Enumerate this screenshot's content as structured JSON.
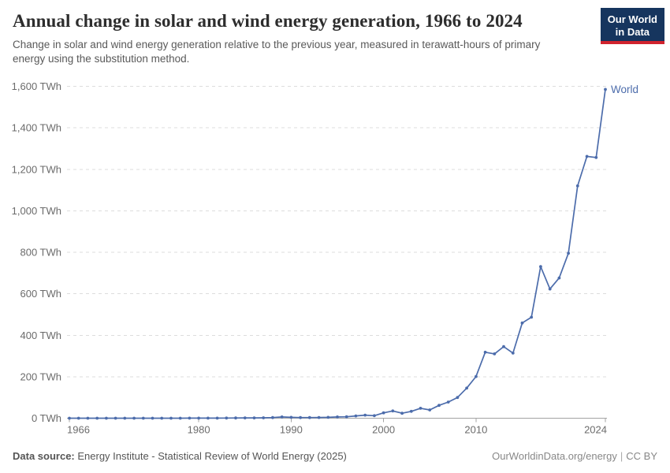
{
  "header": {
    "title": "Annual change in solar and wind energy generation, 1966 to 2024",
    "subtitle": "Change in solar and wind energy generation relative to the previous year, measured in terawatt-hours of primary energy using the substitution method.",
    "logo": {
      "line1": "Our World",
      "line2": "in Data",
      "bg_color": "#16355e",
      "stripe_color": "#d0232e"
    }
  },
  "chart_data": {
    "type": "line",
    "title": "Annual change in solar and wind energy generation, 1966 to 2024",
    "entity_label": "World",
    "unit": "TWh",
    "line_color": "#4c6cab",
    "grid": "horizontal-dashed",
    "legend_position": "end-of-line",
    "xlim": [
      1966,
      2024
    ],
    "ylim": [
      0,
      1600
    ],
    "x_ticks": [
      1966,
      1980,
      1990,
      2000,
      2010,
      2024
    ],
    "x_tick_labels": [
      "1966",
      "1980",
      "1990",
      "2000",
      "2010",
      "2024"
    ],
    "y_ticks": [
      0,
      200,
      400,
      600,
      800,
      1000,
      1200,
      1400,
      1600
    ],
    "y_tick_labels": [
      "0 TWh",
      "200 TWh",
      "400 TWh",
      "600 TWh",
      "800 TWh",
      "1,000 TWh",
      "1,200 TWh",
      "1,400 TWh",
      "1,600 TWh"
    ],
    "x": [
      1966,
      1967,
      1968,
      1969,
      1970,
      1971,
      1972,
      1973,
      1974,
      1975,
      1976,
      1977,
      1978,
      1979,
      1980,
      1981,
      1982,
      1983,
      1984,
      1985,
      1986,
      1987,
      1988,
      1989,
      1990,
      1991,
      1992,
      1993,
      1994,
      1995,
      1996,
      1997,
      1998,
      1999,
      2000,
      2001,
      2002,
      2003,
      2004,
      2005,
      2006,
      2007,
      2008,
      2009,
      2010,
      2011,
      2012,
      2013,
      2014,
      2015,
      2016,
      2017,
      2018,
      2019,
      2020,
      2021,
      2022,
      2023,
      2024
    ],
    "series": [
      {
        "name": "World",
        "values": [
          0,
          0,
          0,
          0,
          0,
          0,
          0,
          0,
          0,
          0,
          0.1,
          0.1,
          0.1,
          0.2,
          0.2,
          0.3,
          0.5,
          0.8,
          1,
          1.5,
          1.5,
          2,
          3,
          6,
          4,
          3,
          3,
          3.5,
          4,
          6,
          7,
          11,
          15,
          12,
          26,
          35,
          24,
          33,
          48,
          40,
          62,
          78,
          100,
          145,
          201,
          318,
          310,
          345,
          314,
          459,
          487,
          731,
          623,
          676,
          795,
          1120,
          1262,
          1257,
          1585
        ]
      }
    ]
  },
  "footer": {
    "source_label": "Data source:",
    "source_text": " Energy Institute - Statistical Review of World Energy (2025)",
    "link_text": "OurWorldinData.org/energy",
    "separator": "|",
    "license": "CC BY"
  }
}
